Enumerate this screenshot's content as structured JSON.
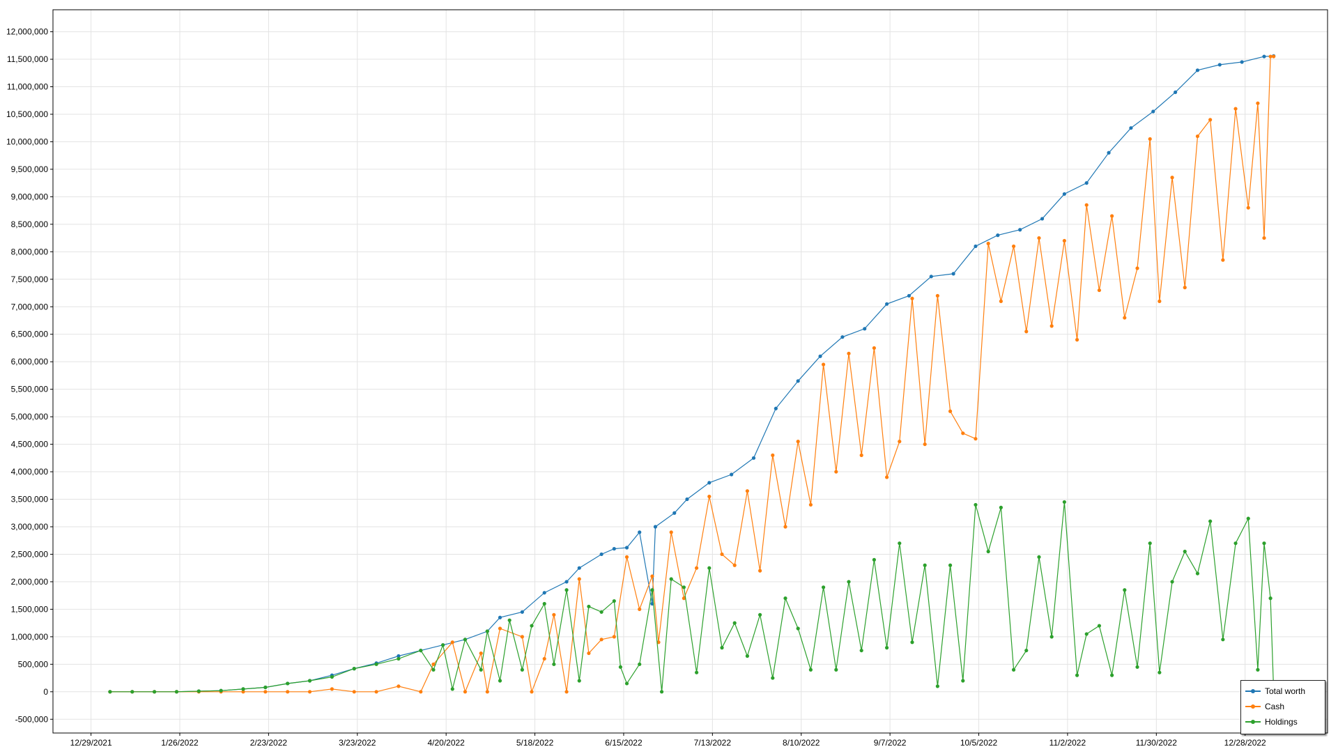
{
  "chart_data": {
    "type": "line",
    "title": "",
    "xlabel": "",
    "ylabel": "",
    "ylim": [
      -750000,
      12400000
    ],
    "xlim": [
      "2021-12-17",
      "2023-01-23"
    ],
    "grid": true,
    "legend_position": "bottom-right",
    "y_ticks": [
      -500000,
      0,
      500000,
      1000000,
      1500000,
      2000000,
      2500000,
      3000000,
      3500000,
      4000000,
      4500000,
      5000000,
      5500000,
      6000000,
      6500000,
      7000000,
      7500000,
      8000000,
      8500000,
      9000000,
      9500000,
      10000000,
      10500000,
      11000000,
      11500000,
      12000000
    ],
    "y_tick_labels": [
      "-500,000",
      "0",
      "500,000",
      "1,000,000",
      "1,500,000",
      "2,000,000",
      "2,500,000",
      "3,000,000",
      "3,500,000",
      "4,000,000",
      "4,500,000",
      "5,000,000",
      "5,500,000",
      "6,000,000",
      "6,500,000",
      "7,000,000",
      "7,500,000",
      "8,000,000",
      "8,500,000",
      "9,000,000",
      "9,500,000",
      "10,000,000",
      "10,500,000",
      "11,000,000",
      "11,500,000",
      "12,000,000"
    ],
    "x_ticks": [
      "2021-12-29",
      "2022-01-26",
      "2022-02-23",
      "2022-03-23",
      "2022-04-20",
      "2022-05-18",
      "2022-06-15",
      "2022-07-13",
      "2022-08-10",
      "2022-09-07",
      "2022-10-05",
      "2022-11-02",
      "2022-11-30",
      "2022-12-28"
    ],
    "x_tick_labels": [
      "12/29/2021",
      "1/26/2022",
      "2/23/2022",
      "3/23/2022",
      "4/20/2022",
      "5/18/2022",
      "6/15/2022",
      "7/13/2022",
      "8/10/2022",
      "9/7/2022",
      "10/5/2022",
      "11/2/2022",
      "11/30/2022",
      "12/28/2022"
    ],
    "series": [
      {
        "name": "Total worth",
        "color": "#1f77b4",
        "points": [
          [
            "2022-01-04",
            0
          ],
          [
            "2022-01-11",
            0
          ],
          [
            "2022-01-18",
            0
          ],
          [
            "2022-01-25",
            0
          ],
          [
            "2022-02-01",
            10000
          ],
          [
            "2022-02-08",
            20000
          ],
          [
            "2022-02-15",
            50000
          ],
          [
            "2022-02-22",
            80000
          ],
          [
            "2022-03-01",
            150000
          ],
          [
            "2022-03-08",
            200000
          ],
          [
            "2022-03-15",
            300000
          ],
          [
            "2022-03-22",
            420000
          ],
          [
            "2022-03-29",
            520000
          ],
          [
            "2022-04-05",
            650000
          ],
          [
            "2022-04-12",
            750000
          ],
          [
            "2022-04-19",
            850000
          ],
          [
            "2022-04-26",
            950000
          ],
          [
            "2022-05-03",
            1100000
          ],
          [
            "2022-05-07",
            1350000
          ],
          [
            "2022-05-14",
            1450000
          ],
          [
            "2022-05-21",
            1800000
          ],
          [
            "2022-05-28",
            2000000
          ],
          [
            "2022-06-01",
            2250000
          ],
          [
            "2022-06-08",
            2500000
          ],
          [
            "2022-06-12",
            2600000
          ],
          [
            "2022-06-16",
            2620000
          ],
          [
            "2022-06-20",
            2900000
          ],
          [
            "2022-06-24",
            1600000
          ],
          [
            "2022-06-25",
            3000000
          ],
          [
            "2022-07-01",
            3250000
          ],
          [
            "2022-07-05",
            3500000
          ],
          [
            "2022-07-12",
            3800000
          ],
          [
            "2022-07-19",
            3950000
          ],
          [
            "2022-07-26",
            4250000
          ],
          [
            "2022-08-02",
            5150000
          ],
          [
            "2022-08-09",
            5650000
          ],
          [
            "2022-08-16",
            6100000
          ],
          [
            "2022-08-23",
            6450000
          ],
          [
            "2022-08-30",
            6600000
          ],
          [
            "2022-09-06",
            7050000
          ],
          [
            "2022-09-13",
            7200000
          ],
          [
            "2022-09-20",
            7550000
          ],
          [
            "2022-09-27",
            7600000
          ],
          [
            "2022-10-04",
            8100000
          ],
          [
            "2022-10-11",
            8300000
          ],
          [
            "2022-10-18",
            8400000
          ],
          [
            "2022-10-25",
            8600000
          ],
          [
            "2022-11-01",
            9050000
          ],
          [
            "2022-11-08",
            9250000
          ],
          [
            "2022-11-15",
            9800000
          ],
          [
            "2022-11-22",
            10250000
          ],
          [
            "2022-11-29",
            10550000
          ],
          [
            "2022-12-06",
            10900000
          ],
          [
            "2022-12-13",
            11300000
          ],
          [
            "2022-12-20",
            11400000
          ],
          [
            "2022-12-27",
            11450000
          ],
          [
            "2023-01-03",
            11550000
          ],
          [
            "2023-01-06",
            11560000
          ]
        ]
      },
      {
        "name": "Cash",
        "color": "#ff7f0e",
        "points": [
          [
            "2022-01-04",
            0
          ],
          [
            "2022-01-11",
            0
          ],
          [
            "2022-01-18",
            0
          ],
          [
            "2022-01-25",
            0
          ],
          [
            "2022-02-01",
            0
          ],
          [
            "2022-02-08",
            0
          ],
          [
            "2022-02-15",
            0
          ],
          [
            "2022-02-22",
            0
          ],
          [
            "2022-03-01",
            0
          ],
          [
            "2022-03-08",
            0
          ],
          [
            "2022-03-15",
            50000
          ],
          [
            "2022-03-22",
            0
          ],
          [
            "2022-03-29",
            0
          ],
          [
            "2022-04-05",
            100000
          ],
          [
            "2022-04-12",
            0
          ],
          [
            "2022-04-16",
            500000
          ],
          [
            "2022-04-22",
            900000
          ],
          [
            "2022-04-26",
            0
          ],
          [
            "2022-05-01",
            700000
          ],
          [
            "2022-05-03",
            0
          ],
          [
            "2022-05-07",
            1150000
          ],
          [
            "2022-05-14",
            1000000
          ],
          [
            "2022-05-17",
            0
          ],
          [
            "2022-05-21",
            600000
          ],
          [
            "2022-05-24",
            1400000
          ],
          [
            "2022-05-28",
            0
          ],
          [
            "2022-06-01",
            2050000
          ],
          [
            "2022-06-04",
            700000
          ],
          [
            "2022-06-08",
            950000
          ],
          [
            "2022-06-12",
            1000000
          ],
          [
            "2022-06-16",
            2450000
          ],
          [
            "2022-06-20",
            1500000
          ],
          [
            "2022-06-24",
            2100000
          ],
          [
            "2022-06-26",
            900000
          ],
          [
            "2022-06-30",
            2900000
          ],
          [
            "2022-07-04",
            1700000
          ],
          [
            "2022-07-08",
            2250000
          ],
          [
            "2022-07-12",
            3550000
          ],
          [
            "2022-07-16",
            2500000
          ],
          [
            "2022-07-20",
            2300000
          ],
          [
            "2022-07-24",
            3650000
          ],
          [
            "2022-07-28",
            2200000
          ],
          [
            "2022-08-01",
            4300000
          ],
          [
            "2022-08-05",
            3000000
          ],
          [
            "2022-08-09",
            4550000
          ],
          [
            "2022-08-13",
            3400000
          ],
          [
            "2022-08-17",
            5950000
          ],
          [
            "2022-08-21",
            4000000
          ],
          [
            "2022-08-25",
            6150000
          ],
          [
            "2022-08-29",
            4300000
          ],
          [
            "2022-09-02",
            6250000
          ],
          [
            "2022-09-06",
            3900000
          ],
          [
            "2022-09-10",
            4550000
          ],
          [
            "2022-09-14",
            7150000
          ],
          [
            "2022-09-18",
            4500000
          ],
          [
            "2022-09-22",
            7200000
          ],
          [
            "2022-09-26",
            5100000
          ],
          [
            "2022-09-30",
            4700000
          ],
          [
            "2022-10-04",
            4600000
          ],
          [
            "2022-10-08",
            8150000
          ],
          [
            "2022-10-12",
            7100000
          ],
          [
            "2022-10-16",
            8100000
          ],
          [
            "2022-10-20",
            6550000
          ],
          [
            "2022-10-24",
            8250000
          ],
          [
            "2022-10-28",
            6650000
          ],
          [
            "2022-11-01",
            8200000
          ],
          [
            "2022-11-05",
            6400000
          ],
          [
            "2022-11-08",
            8850000
          ],
          [
            "2022-11-12",
            7300000
          ],
          [
            "2022-11-16",
            8650000
          ],
          [
            "2022-11-20",
            6800000
          ],
          [
            "2022-11-24",
            7700000
          ],
          [
            "2022-11-28",
            10050000
          ],
          [
            "2022-12-01",
            7100000
          ],
          [
            "2022-12-05",
            9350000
          ],
          [
            "2022-12-09",
            7350000
          ],
          [
            "2022-12-13",
            10100000
          ],
          [
            "2022-12-17",
            10400000
          ],
          [
            "2022-12-21",
            7850000
          ],
          [
            "2022-12-25",
            10600000
          ],
          [
            "2022-12-29",
            8800000
          ],
          [
            "2023-01-01",
            10700000
          ],
          [
            "2023-01-03",
            8250000
          ],
          [
            "2023-01-05",
            11550000
          ],
          [
            "2023-01-06",
            11550000
          ]
        ]
      },
      {
        "name": "Holdings",
        "color": "#2ca02c",
        "points": [
          [
            "2022-01-04",
            0
          ],
          [
            "2022-01-11",
            0
          ],
          [
            "2022-01-18",
            0
          ],
          [
            "2022-01-25",
            0
          ],
          [
            "2022-02-01",
            10000
          ],
          [
            "2022-02-08",
            20000
          ],
          [
            "2022-02-15",
            50000
          ],
          [
            "2022-02-22",
            80000
          ],
          [
            "2022-03-01",
            150000
          ],
          [
            "2022-03-08",
            200000
          ],
          [
            "2022-03-15",
            270000
          ],
          [
            "2022-03-22",
            420000
          ],
          [
            "2022-03-29",
            500000
          ],
          [
            "2022-04-05",
            600000
          ],
          [
            "2022-04-12",
            750000
          ],
          [
            "2022-04-16",
            400000
          ],
          [
            "2022-04-19",
            850000
          ],
          [
            "2022-04-22",
            50000
          ],
          [
            "2022-04-26",
            950000
          ],
          [
            "2022-05-01",
            400000
          ],
          [
            "2022-05-03",
            1100000
          ],
          [
            "2022-05-07",
            200000
          ],
          [
            "2022-05-10",
            1300000
          ],
          [
            "2022-05-14",
            400000
          ],
          [
            "2022-05-17",
            1200000
          ],
          [
            "2022-05-21",
            1600000
          ],
          [
            "2022-05-24",
            500000
          ],
          [
            "2022-05-28",
            1850000
          ],
          [
            "2022-06-01",
            200000
          ],
          [
            "2022-06-04",
            1550000
          ],
          [
            "2022-06-08",
            1450000
          ],
          [
            "2022-06-12",
            1650000
          ],
          [
            "2022-06-14",
            450000
          ],
          [
            "2022-06-16",
            150000
          ],
          [
            "2022-06-20",
            500000
          ],
          [
            "2022-06-24",
            1850000
          ],
          [
            "2022-06-27",
            0
          ],
          [
            "2022-06-30",
            2050000
          ],
          [
            "2022-07-04",
            1900000
          ],
          [
            "2022-07-08",
            350000
          ],
          [
            "2022-07-12",
            2250000
          ],
          [
            "2022-07-16",
            800000
          ],
          [
            "2022-07-20",
            1250000
          ],
          [
            "2022-07-24",
            650000
          ],
          [
            "2022-07-28",
            1400000
          ],
          [
            "2022-08-01",
            250000
          ],
          [
            "2022-08-05",
            1700000
          ],
          [
            "2022-08-09",
            1150000
          ],
          [
            "2022-08-13",
            400000
          ],
          [
            "2022-08-17",
            1900000
          ],
          [
            "2022-08-21",
            400000
          ],
          [
            "2022-08-25",
            2000000
          ],
          [
            "2022-08-29",
            750000
          ],
          [
            "2022-09-02",
            2400000
          ],
          [
            "2022-09-06",
            800000
          ],
          [
            "2022-09-10",
            2700000
          ],
          [
            "2022-09-14",
            900000
          ],
          [
            "2022-09-18",
            2300000
          ],
          [
            "2022-09-22",
            100000
          ],
          [
            "2022-09-26",
            2300000
          ],
          [
            "2022-09-30",
            200000
          ],
          [
            "2022-10-04",
            3400000
          ],
          [
            "2022-10-08",
            2550000
          ],
          [
            "2022-10-12",
            3350000
          ],
          [
            "2022-10-16",
            400000
          ],
          [
            "2022-10-20",
            750000
          ],
          [
            "2022-10-24",
            2450000
          ],
          [
            "2022-10-28",
            1000000
          ],
          [
            "2022-11-01",
            3450000
          ],
          [
            "2022-11-05",
            300000
          ],
          [
            "2022-11-08",
            1050000
          ],
          [
            "2022-11-12",
            1200000
          ],
          [
            "2022-11-16",
            300000
          ],
          [
            "2022-11-20",
            1850000
          ],
          [
            "2022-11-24",
            450000
          ],
          [
            "2022-11-28",
            2700000
          ],
          [
            "2022-12-01",
            350000
          ],
          [
            "2022-12-05",
            2000000
          ],
          [
            "2022-12-09",
            2550000
          ],
          [
            "2022-12-13",
            2150000
          ],
          [
            "2022-12-17",
            3100000
          ],
          [
            "2022-12-21",
            950000
          ],
          [
            "2022-12-25",
            2700000
          ],
          [
            "2022-12-29",
            3150000
          ],
          [
            "2023-01-01",
            400000
          ],
          [
            "2023-01-03",
            2700000
          ],
          [
            "2023-01-05",
            1700000
          ],
          [
            "2023-01-06",
            0
          ]
        ]
      }
    ]
  }
}
